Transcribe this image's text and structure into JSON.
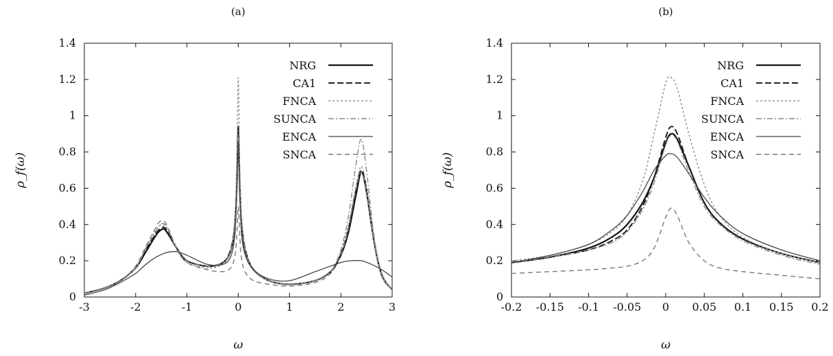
{
  "chart_data": [
    {
      "type": "line",
      "panel_label": "(a)",
      "xlabel": "ω",
      "ylabel": "ρ_f(ω)",
      "xlim": [
        -3,
        3
      ],
      "ylim": [
        0,
        1.4
      ],
      "xticks": [
        -3,
        -2,
        -1,
        0,
        1,
        2,
        3
      ],
      "yticks": [
        0,
        0.2,
        0.4,
        0.6,
        0.8,
        1,
        1.2,
        1.4
      ],
      "grid": false,
      "legend_position": "top-right",
      "series": [
        {
          "name": "NRG",
          "color": "#111111",
          "x": [
            -3,
            -2.6,
            -2.3,
            -2.0,
            -1.8,
            -1.65,
            -1.55,
            -1.45,
            -1.35,
            -1.2,
            -1.0,
            -0.6,
            -0.3,
            -0.15,
            -0.07,
            -0.03,
            0,
            0.03,
            0.07,
            0.15,
            0.3,
            0.6,
            1.0,
            1.5,
            1.8,
            2.0,
            2.15,
            2.3,
            2.4,
            2.5,
            2.65,
            2.8,
            3.0
          ],
          "y": [
            0.02,
            0.05,
            0.09,
            0.16,
            0.25,
            0.32,
            0.36,
            0.375,
            0.34,
            0.27,
            0.2,
            0.17,
            0.19,
            0.25,
            0.38,
            0.6,
            0.92,
            0.6,
            0.38,
            0.24,
            0.15,
            0.09,
            0.07,
            0.09,
            0.14,
            0.23,
            0.36,
            0.57,
            0.69,
            0.58,
            0.3,
            0.12,
            0.04
          ]
        },
        {
          "name": "CA1",
          "color": "#222222",
          "x": [
            -3,
            -2.6,
            -2.3,
            -2.0,
            -1.8,
            -1.65,
            -1.55,
            -1.45,
            -1.35,
            -1.2,
            -1.0,
            -0.6,
            -0.3,
            -0.15,
            -0.07,
            -0.03,
            0,
            0.03,
            0.07,
            0.15,
            0.3,
            0.6,
            1.0,
            1.5,
            1.8,
            2.0,
            2.15,
            2.3,
            2.4,
            2.5,
            2.65,
            2.8,
            3.0
          ],
          "y": [
            0.02,
            0.05,
            0.09,
            0.16,
            0.26,
            0.33,
            0.37,
            0.385,
            0.35,
            0.27,
            0.2,
            0.17,
            0.19,
            0.26,
            0.4,
            0.63,
            0.95,
            0.63,
            0.4,
            0.25,
            0.15,
            0.09,
            0.07,
            0.09,
            0.14,
            0.24,
            0.38,
            0.6,
            0.7,
            0.6,
            0.3,
            0.12,
            0.04
          ]
        },
        {
          "name": "FNCA",
          "color": "#999999",
          "x": [
            -3,
            -2.6,
            -2.3,
            -2.0,
            -1.8,
            -1.65,
            -1.55,
            -1.45,
            -1.35,
            -1.2,
            -1.0,
            -0.6,
            -0.3,
            -0.15,
            -0.07,
            -0.03,
            0,
            0.03,
            0.07,
            0.15,
            0.3,
            0.6,
            1.0,
            1.5,
            1.8,
            2.0,
            2.15,
            2.3,
            2.4,
            2.5,
            2.65,
            2.8,
            3.0
          ],
          "y": [
            0.02,
            0.05,
            0.09,
            0.16,
            0.27,
            0.35,
            0.39,
            0.4,
            0.36,
            0.26,
            0.19,
            0.16,
            0.18,
            0.25,
            0.42,
            0.7,
            1.21,
            0.7,
            0.42,
            0.25,
            0.15,
            0.09,
            0.07,
            0.09,
            0.14,
            0.25,
            0.4,
            0.62,
            0.72,
            0.6,
            0.3,
            0.12,
            0.04
          ]
        },
        {
          "name": "SUNCA",
          "color": "#888888",
          "x": [
            -3,
            -2.6,
            -2.3,
            -2.0,
            -1.8,
            -1.65,
            -1.55,
            -1.45,
            -1.35,
            -1.2,
            -1.0,
            -0.6,
            -0.3,
            -0.15,
            -0.07,
            -0.03,
            0,
            0.03,
            0.07,
            0.15,
            0.3,
            0.6,
            1.0,
            1.5,
            1.8,
            2.0,
            2.15,
            2.3,
            2.4,
            2.5,
            2.65,
            2.8,
            3.0
          ],
          "y": [
            0.02,
            0.05,
            0.09,
            0.16,
            0.27,
            0.34,
            0.39,
            0.405,
            0.36,
            0.27,
            0.2,
            0.17,
            0.19,
            0.25,
            0.39,
            0.62,
            0.9,
            0.62,
            0.39,
            0.24,
            0.15,
            0.09,
            0.07,
            0.09,
            0.14,
            0.26,
            0.45,
            0.74,
            0.87,
            0.7,
            0.33,
            0.13,
            0.04
          ]
        },
        {
          "name": "ENCA",
          "color": "#444444",
          "x": [
            -3,
            -2.6,
            -2.3,
            -2.0,
            -1.8,
            -1.6,
            -1.4,
            -1.2,
            -1.0,
            -0.6,
            -0.3,
            -0.15,
            -0.07,
            -0.03,
            0,
            0.03,
            0.07,
            0.15,
            0.3,
            0.6,
            1.0,
            1.5,
            2.0,
            2.2,
            2.4,
            2.6,
            2.8,
            3.0
          ],
          "y": [
            0.01,
            0.04,
            0.08,
            0.13,
            0.18,
            0.22,
            0.245,
            0.25,
            0.23,
            0.18,
            0.18,
            0.22,
            0.33,
            0.55,
            0.85,
            0.55,
            0.33,
            0.22,
            0.15,
            0.1,
            0.09,
            0.14,
            0.19,
            0.2,
            0.2,
            0.18,
            0.15,
            0.11
          ]
        },
        {
          "name": "SNCA",
          "color": "#777777",
          "x": [
            -3,
            -2.6,
            -2.3,
            -2.0,
            -1.8,
            -1.65,
            -1.55,
            -1.45,
            -1.35,
            -1.2,
            -1.0,
            -0.6,
            -0.3,
            -0.15,
            -0.07,
            -0.03,
            0,
            0.03,
            0.07,
            0.15,
            0.3,
            0.6,
            1.0,
            1.5,
            1.8,
            2.0,
            2.15,
            2.3,
            2.4,
            2.5,
            2.65,
            2.8,
            3.0
          ],
          "y": [
            0.02,
            0.05,
            0.09,
            0.17,
            0.28,
            0.36,
            0.41,
            0.42,
            0.37,
            0.27,
            0.19,
            0.15,
            0.14,
            0.16,
            0.22,
            0.33,
            0.5,
            0.33,
            0.2,
            0.13,
            0.09,
            0.07,
            0.06,
            0.08,
            0.13,
            0.23,
            0.38,
            0.6,
            0.69,
            0.58,
            0.29,
            0.11,
            0.04
          ]
        }
      ]
    },
    {
      "type": "line",
      "panel_label": "(b)",
      "xlabel": "ω",
      "ylabel": "ρ_f(ω)",
      "xlim": [
        -0.2,
        0.2
      ],
      "ylim": [
        0,
        1.4
      ],
      "xticks": [
        -0.2,
        -0.15,
        -0.1,
        -0.05,
        0,
        0.05,
        0.1,
        0.15,
        0.2
      ],
      "yticks": [
        0,
        0.2,
        0.4,
        0.6,
        0.8,
        1,
        1.2,
        1.4
      ],
      "grid": false,
      "legend_position": "top-right",
      "series": [
        {
          "name": "NRG",
          "color": "#111111",
          "x": [
            -0.2,
            -0.15,
            -0.1,
            -0.07,
            -0.05,
            -0.03,
            -0.015,
            0,
            0.007,
            0.015,
            0.03,
            0.05,
            0.07,
            0.1,
            0.15,
            0.2
          ],
          "y": [
            0.19,
            0.22,
            0.27,
            0.33,
            0.4,
            0.52,
            0.66,
            0.85,
            0.9,
            0.87,
            0.72,
            0.52,
            0.41,
            0.32,
            0.24,
            0.19
          ]
        },
        {
          "name": "CA1",
          "color": "#222222",
          "x": [
            -0.2,
            -0.15,
            -0.1,
            -0.07,
            -0.05,
            -0.03,
            -0.015,
            0,
            0.007,
            0.015,
            0.03,
            0.05,
            0.07,
            0.1,
            0.15,
            0.2
          ],
          "y": [
            0.19,
            0.22,
            0.26,
            0.31,
            0.37,
            0.5,
            0.66,
            0.88,
            0.94,
            0.9,
            0.72,
            0.52,
            0.41,
            0.32,
            0.24,
            0.19
          ]
        },
        {
          "name": "FNCA",
          "color": "#999999",
          "x": [
            -0.2,
            -0.15,
            -0.1,
            -0.07,
            -0.05,
            -0.03,
            -0.015,
            0,
            0.007,
            0.015,
            0.03,
            0.05,
            0.07,
            0.1,
            0.15,
            0.2
          ],
          "y": [
            0.2,
            0.23,
            0.29,
            0.36,
            0.45,
            0.64,
            0.9,
            1.18,
            1.21,
            1.15,
            0.9,
            0.62,
            0.45,
            0.33,
            0.24,
            0.19
          ]
        },
        {
          "name": "SUNCA",
          "color": "#888888",
          "x": [
            -0.2,
            -0.15,
            -0.1,
            -0.07,
            -0.05,
            -0.03,
            -0.015,
            0,
            0.007,
            0.015,
            0.03,
            0.05,
            0.07,
            0.1,
            0.15,
            0.2
          ],
          "y": [
            0.19,
            0.22,
            0.26,
            0.3,
            0.36,
            0.48,
            0.63,
            0.84,
            0.89,
            0.86,
            0.69,
            0.5,
            0.4,
            0.31,
            0.23,
            0.18
          ]
        },
        {
          "name": "ENCA",
          "color": "#444444",
          "x": [
            -0.2,
            -0.15,
            -0.1,
            -0.07,
            -0.05,
            -0.03,
            -0.015,
            0,
            0.007,
            0.015,
            0.03,
            0.05,
            0.07,
            0.1,
            0.15,
            0.2
          ],
          "y": [
            0.19,
            0.23,
            0.29,
            0.37,
            0.45,
            0.58,
            0.7,
            0.78,
            0.79,
            0.77,
            0.68,
            0.55,
            0.45,
            0.35,
            0.26,
            0.2
          ]
        },
        {
          "name": "SNCA",
          "color": "#777777",
          "x": [
            -0.2,
            -0.15,
            -0.1,
            -0.07,
            -0.05,
            -0.03,
            -0.015,
            0,
            0.007,
            0.015,
            0.03,
            0.05,
            0.07,
            0.1,
            0.15,
            0.2
          ],
          "y": [
            0.13,
            0.14,
            0.15,
            0.16,
            0.17,
            0.2,
            0.27,
            0.44,
            0.49,
            0.45,
            0.3,
            0.2,
            0.16,
            0.14,
            0.12,
            0.1
          ]
        }
      ]
    }
  ]
}
